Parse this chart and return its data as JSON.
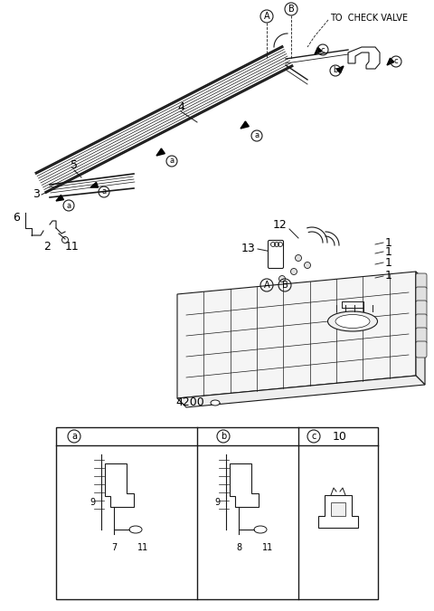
{
  "bg_color": "#ffffff",
  "line_color": "#1a1a1a",
  "fig_width": 4.8,
  "fig_height": 6.75,
  "dpi": 100,
  "labels": {
    "A_top": "A",
    "B_top": "B",
    "to_check_valve": "TO  CHECK VALVE",
    "num4": "4",
    "num5": "5",
    "num3": "3",
    "num6": "6",
    "num2": "2",
    "num11_left": "11",
    "num12": "12",
    "num13": "13",
    "num1a": "1",
    "num1b": "1",
    "num1c": "1",
    "num1d": "1",
    "num4200": "4200",
    "label_a": "a",
    "label_b": "b",
    "label_c": "c",
    "num7": "7",
    "num8": "8",
    "num9a": "9",
    "num9b": "9",
    "num11a": "11",
    "num11b": "11",
    "num10": "10"
  }
}
